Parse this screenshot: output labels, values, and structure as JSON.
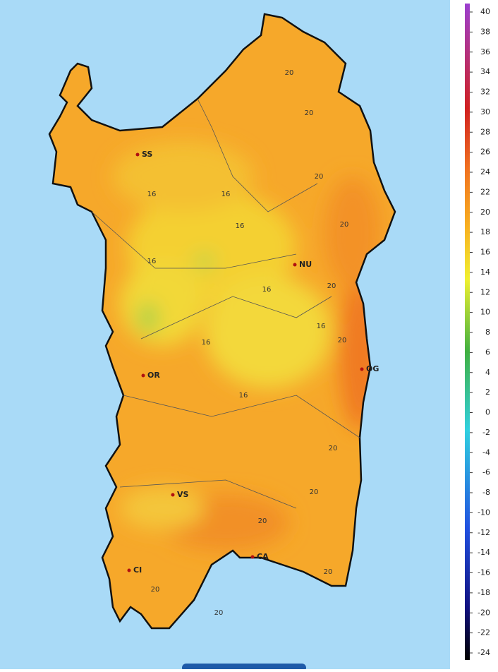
{
  "cities": [
    "SS",
    "NU",
    "OR",
    "OG",
    "VS",
    "CA",
    "CI"
  ],
  "contour_labels": [
    20,
    20,
    20,
    16,
    16,
    16,
    20,
    16,
    20,
    16,
    16,
    20,
    16,
    16,
    20,
    20,
    20,
    20,
    20,
    20
  ],
  "colorbar": {
    "ticks": [
      40,
      38,
      36,
      34,
      32,
      30,
      28,
      26,
      24,
      22,
      20,
      18,
      16,
      14,
      12,
      10,
      8,
      6,
      4,
      2,
      0,
      -2,
      -4,
      -6,
      -8,
      -10,
      -12,
      -14,
      -16,
      -18,
      -20,
      -22,
      -24
    ]
  }
}
